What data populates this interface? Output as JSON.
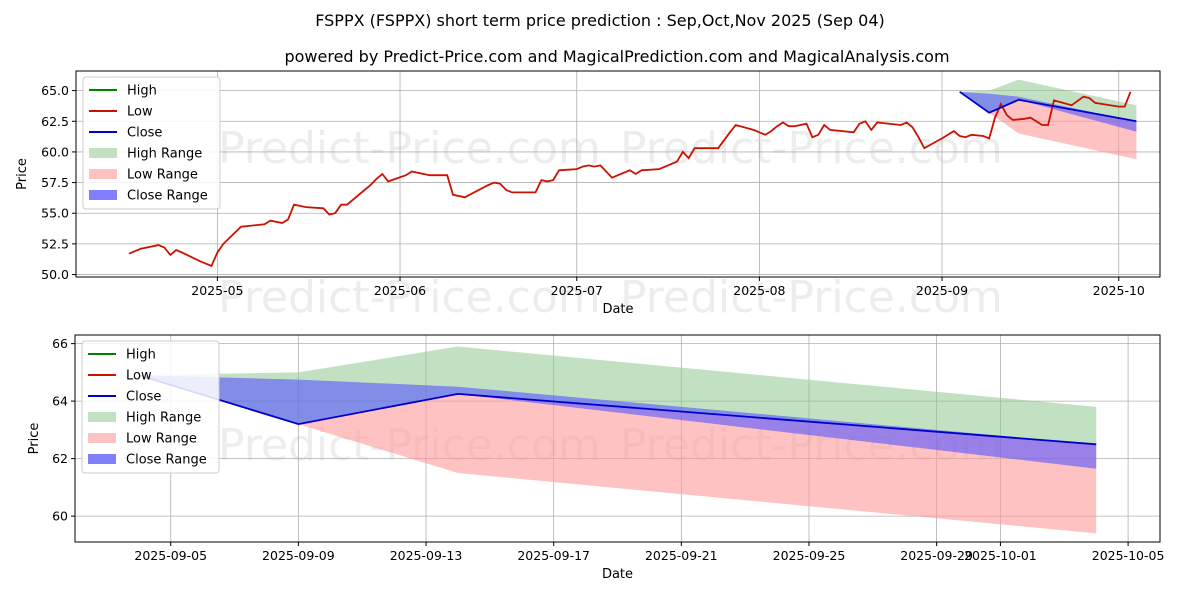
{
  "title": "FSPPX (FSPPX) short term price prediction : Sep,Oct,Nov 2025 (Sep 04)",
  "subtitle": "powered by Predict-Price.com and MagicalPrediction.com and MagicalAnalysis.com",
  "watermark": "Predict-Price.com",
  "colors": {
    "high": "#008000",
    "low": "#cc1100",
    "close": "#0000cc",
    "high_range": "#8fc98f",
    "low_range": "#ff9999",
    "close_range": "#5555ff",
    "grid": "#b0b0b0"
  },
  "chart_data": [
    {
      "type": "line",
      "name": "history",
      "xlabel": "Date",
      "ylabel": "Price",
      "xlim": [
        "2025-04-07",
        "2025-10-08"
      ],
      "ylim": [
        49.8,
        66.6
      ],
      "x_ticks": [
        "2025-05-01",
        "2025-06-01",
        "2025-07-01",
        "2025-08-01",
        "2025-09-01",
        "2025-10-01"
      ],
      "x_tick_labels": [
        "2025-05",
        "2025-06",
        "2025-07",
        "2025-08",
        "2025-09",
        "2025-10"
      ],
      "y_ticks": [
        50.0,
        52.5,
        55.0,
        57.5,
        60.0,
        62.5,
        65.0
      ],
      "y_tick_labels": [
        "50.0",
        "52.5",
        "55.0",
        "57.5",
        "60.0",
        "62.5",
        "65.0"
      ],
      "grid": true,
      "legend": "upper-left",
      "legend_entries": [
        "High",
        "Low",
        "Close",
        "High Range",
        "Low Range",
        "Close Range"
      ],
      "low_series": [
        [
          "2025-04-16",
          51.7
        ],
        [
          "2025-04-17",
          51.9
        ],
        [
          "2025-04-18",
          52.1
        ],
        [
          "2025-04-21",
          52.4
        ],
        [
          "2025-04-22",
          52.2
        ],
        [
          "2025-04-23",
          51.6
        ],
        [
          "2025-04-24",
          52.0
        ],
        [
          "2025-04-25",
          51.8
        ],
        [
          "2025-04-28",
          51.1
        ],
        [
          "2025-04-30",
          50.7
        ],
        [
          "2025-05-01",
          51.8
        ],
        [
          "2025-05-02",
          52.5
        ],
        [
          "2025-05-05",
          53.9
        ],
        [
          "2025-05-09",
          54.1
        ],
        [
          "2025-05-10",
          54.4
        ],
        [
          "2025-05-12",
          54.2
        ],
        [
          "2025-05-13",
          54.5
        ],
        [
          "2025-05-14",
          55.7
        ],
        [
          "2025-05-15",
          55.6
        ],
        [
          "2025-05-16",
          55.5
        ],
        [
          "2025-05-19",
          55.4
        ],
        [
          "2025-05-20",
          54.9
        ],
        [
          "2025-05-21",
          55.0
        ],
        [
          "2025-05-22",
          55.7
        ],
        [
          "2025-05-23",
          55.7
        ],
        [
          "2025-05-27",
          57.3
        ],
        [
          "2025-05-28",
          57.8
        ],
        [
          "2025-05-29",
          58.2
        ],
        [
          "2025-05-30",
          57.6
        ],
        [
          "2025-06-02",
          58.1
        ],
        [
          "2025-06-03",
          58.4
        ],
        [
          "2025-06-06",
          58.1
        ],
        [
          "2025-06-09",
          58.1
        ],
        [
          "2025-06-10",
          56.5
        ],
        [
          "2025-06-12",
          56.3
        ],
        [
          "2025-06-16",
          57.3
        ],
        [
          "2025-06-17",
          57.5
        ],
        [
          "2025-06-18",
          57.4
        ],
        [
          "2025-06-19",
          56.9
        ],
        [
          "2025-06-20",
          56.7
        ],
        [
          "2025-06-24",
          56.7
        ],
        [
          "2025-06-25",
          57.7
        ],
        [
          "2025-06-26",
          57.6
        ],
        [
          "2025-06-27",
          57.7
        ],
        [
          "2025-06-28",
          58.5
        ],
        [
          "2025-07-01",
          58.6
        ],
        [
          "2025-07-02",
          58.8
        ],
        [
          "2025-07-03",
          58.9
        ],
        [
          "2025-07-04",
          58.8
        ],
        [
          "2025-07-05",
          58.9
        ],
        [
          "2025-07-07",
          57.9
        ],
        [
          "2025-07-08",
          58.1
        ],
        [
          "2025-07-10",
          58.5
        ],
        [
          "2025-07-11",
          58.2
        ],
        [
          "2025-07-12",
          58.5
        ],
        [
          "2025-07-15",
          58.6
        ],
        [
          "2025-07-18",
          59.2
        ],
        [
          "2025-07-19",
          60.0
        ],
        [
          "2025-07-20",
          59.5
        ],
        [
          "2025-07-21",
          60.3
        ],
        [
          "2025-07-25",
          60.3
        ],
        [
          "2025-07-27",
          61.6
        ],
        [
          "2025-07-28",
          62.2
        ],
        [
          "2025-07-31",
          61.8
        ],
        [
          "2025-08-01",
          61.6
        ],
        [
          "2025-08-02",
          61.4
        ],
        [
          "2025-08-03",
          61.7
        ],
        [
          "2025-08-04",
          62.1
        ],
        [
          "2025-08-05",
          62.4
        ],
        [
          "2025-08-06",
          62.1
        ],
        [
          "2025-08-07",
          62.1
        ],
        [
          "2025-08-09",
          62.3
        ],
        [
          "2025-08-10",
          61.2
        ],
        [
          "2025-08-11",
          61.4
        ],
        [
          "2025-08-12",
          62.2
        ],
        [
          "2025-08-13",
          61.8
        ],
        [
          "2025-08-17",
          61.6
        ],
        [
          "2025-08-18",
          62.3
        ],
        [
          "2025-08-19",
          62.5
        ],
        [
          "2025-08-20",
          61.8
        ],
        [
          "2025-08-21",
          62.4
        ],
        [
          "2025-08-25",
          62.2
        ],
        [
          "2025-08-26",
          62.4
        ],
        [
          "2025-08-27",
          62.0
        ],
        [
          "2025-08-28",
          61.2
        ],
        [
          "2025-08-29",
          60.3
        ],
        [
          "2025-09-01",
          61.1
        ],
        [
          "2025-09-03",
          61.7
        ],
        [
          "2025-09-04",
          61.3
        ],
        [
          "2025-09-05",
          61.2
        ],
        [
          "2025-09-06",
          61.4
        ],
        [
          "2025-09-08",
          61.3
        ],
        [
          "2025-09-09",
          61.1
        ],
        [
          "2025-09-10",
          62.8
        ],
        [
          "2025-09-11",
          63.9
        ],
        [
          "2025-09-12",
          63.0
        ],
        [
          "2025-09-13",
          62.6
        ],
        [
          "2025-09-15",
          62.7
        ],
        [
          "2025-09-16",
          62.8
        ],
        [
          "2025-09-18",
          62.2
        ],
        [
          "2025-09-19",
          62.2
        ],
        [
          "2025-09-20",
          64.2
        ],
        [
          "2025-09-23",
          63.8
        ],
        [
          "2025-09-25",
          64.5
        ],
        [
          "2025-09-26",
          64.4
        ],
        [
          "2025-09-27",
          64.0
        ],
        [
          "2025-10-01",
          63.7
        ],
        [
          "2025-10-02",
          63.7
        ],
        [
          "2025-10-03",
          64.9
        ]
      ],
      "forecast": {
        "x": [
          "2025-09-04",
          "2025-09-09",
          "2025-09-14",
          "2025-10-04"
        ],
        "close": [
          64.9,
          63.2,
          64.25,
          62.5
        ],
        "high_range_upper": [
          64.9,
          65.0,
          65.9,
          63.8
        ],
        "low_range_lower": [
          64.9,
          63.2,
          61.5,
          59.4
        ],
        "close_range_upper": [
          64.9,
          64.75,
          64.5,
          62.5
        ],
        "close_range_lower": [
          64.9,
          63.2,
          64.25,
          61.65
        ]
      }
    },
    {
      "type": "line",
      "name": "forecast-zoom",
      "xlabel": "Date",
      "ylabel": "Price",
      "xlim": [
        "2025-09-02",
        "2025-10-06"
      ],
      "ylim": [
        59.1,
        66.3
      ],
      "x_ticks": [
        "2025-09-05",
        "2025-09-09",
        "2025-09-13",
        "2025-09-17",
        "2025-09-21",
        "2025-09-25",
        "2025-09-29",
        "2025-10-01",
        "2025-10-05"
      ],
      "x_tick_labels": [
        "2025-09-05",
        "2025-09-09",
        "2025-09-13",
        "2025-09-17",
        "2025-09-21",
        "2025-09-25",
        "2025-09-29",
        "2025-10-01",
        "2025-10-05"
      ],
      "y_ticks": [
        60,
        62,
        64,
        66
      ],
      "y_tick_labels": [
        "60",
        "62",
        "64",
        "66"
      ],
      "grid": true,
      "legend": "upper-left",
      "legend_entries": [
        "High",
        "Low",
        "Close",
        "High Range",
        "Low Range",
        "Close Range"
      ],
      "forecast": {
        "x": [
          "2025-09-04",
          "2025-09-09",
          "2025-09-14",
          "2025-10-04"
        ],
        "close": [
          64.9,
          63.2,
          64.25,
          62.5
        ],
        "high_range_upper": [
          64.9,
          65.0,
          65.9,
          63.8
        ],
        "low_range_lower": [
          64.9,
          63.2,
          61.5,
          59.4
        ],
        "close_range_upper": [
          64.9,
          64.75,
          64.5,
          62.5
        ],
        "close_range_lower": [
          64.9,
          63.2,
          64.25,
          61.65
        ]
      }
    }
  ]
}
